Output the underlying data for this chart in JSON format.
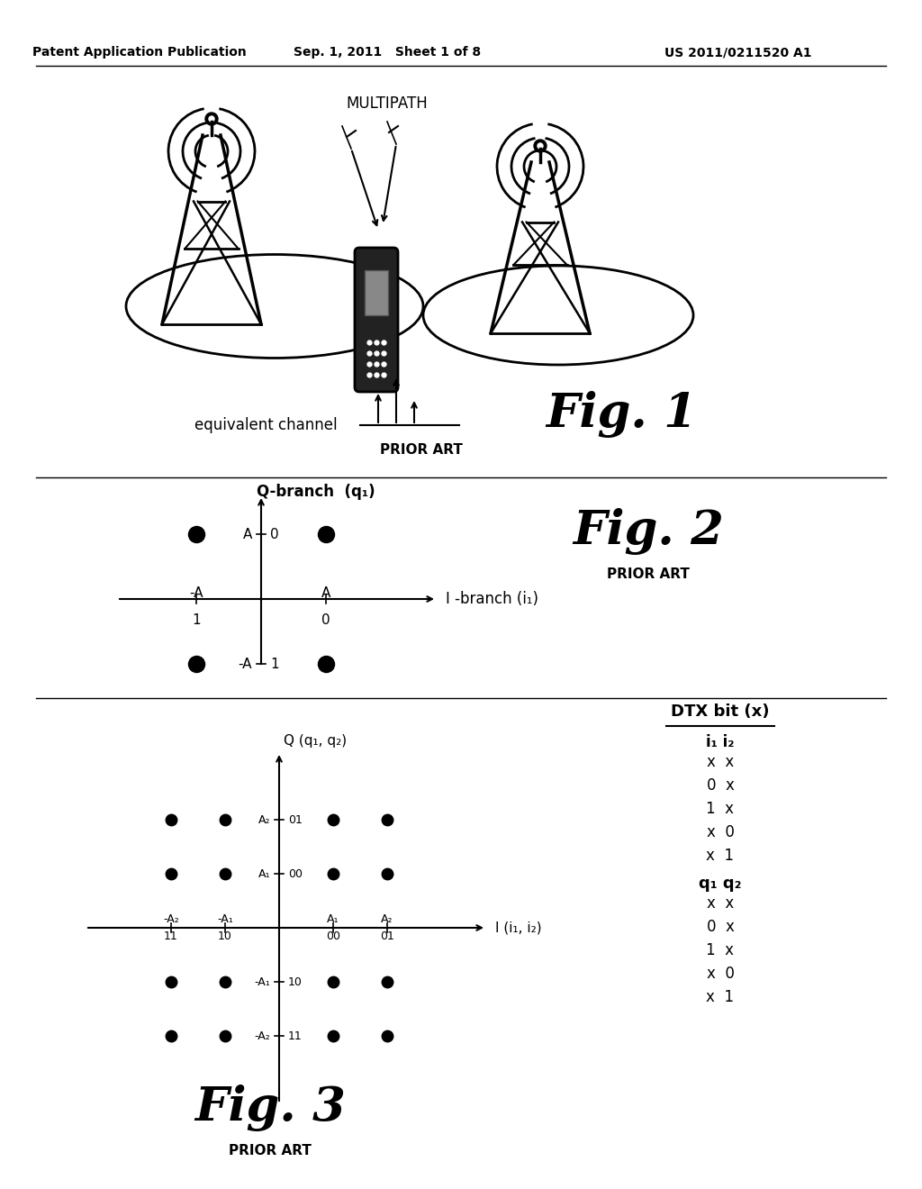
{
  "header_left": "Patent Application Publication",
  "header_mid": "Sep. 1, 2011   Sheet 1 of 8",
  "header_right": "US 2011/0211520 A1",
  "fig1_label": "Fig. 1",
  "fig1_prior_art": "PRIOR ART",
  "fig1_eq_channel": "equivalent channel",
  "fig1_multipath": "MULTIPATH",
  "fig2_label": "Fig. 2",
  "fig2_prior_art": "PRIOR ART",
  "fig2_q_label": "Q-branch  (q₁)",
  "fig2_i_label": "I -branch (i₁)",
  "fig3_label": "Fig. 3",
  "fig3_prior_art": "PRIOR ART",
  "fig3_q_label": "Q (q₁, q₂)",
  "fig3_i_label": "I (i₁, i₂)",
  "dtx_title": "DTX bit (x)",
  "dtx_i_header": "i₁ i₂",
  "dtx_rows": [
    "x  x",
    "0  x",
    "1  x",
    "x  0",
    "x  1"
  ],
  "dtx_q_header": "q₁ q₂",
  "dtx_q_rows": [
    "x  x",
    "0  x",
    "1  x",
    "x  0",
    "x  1"
  ],
  "bg_color": "#ffffff"
}
